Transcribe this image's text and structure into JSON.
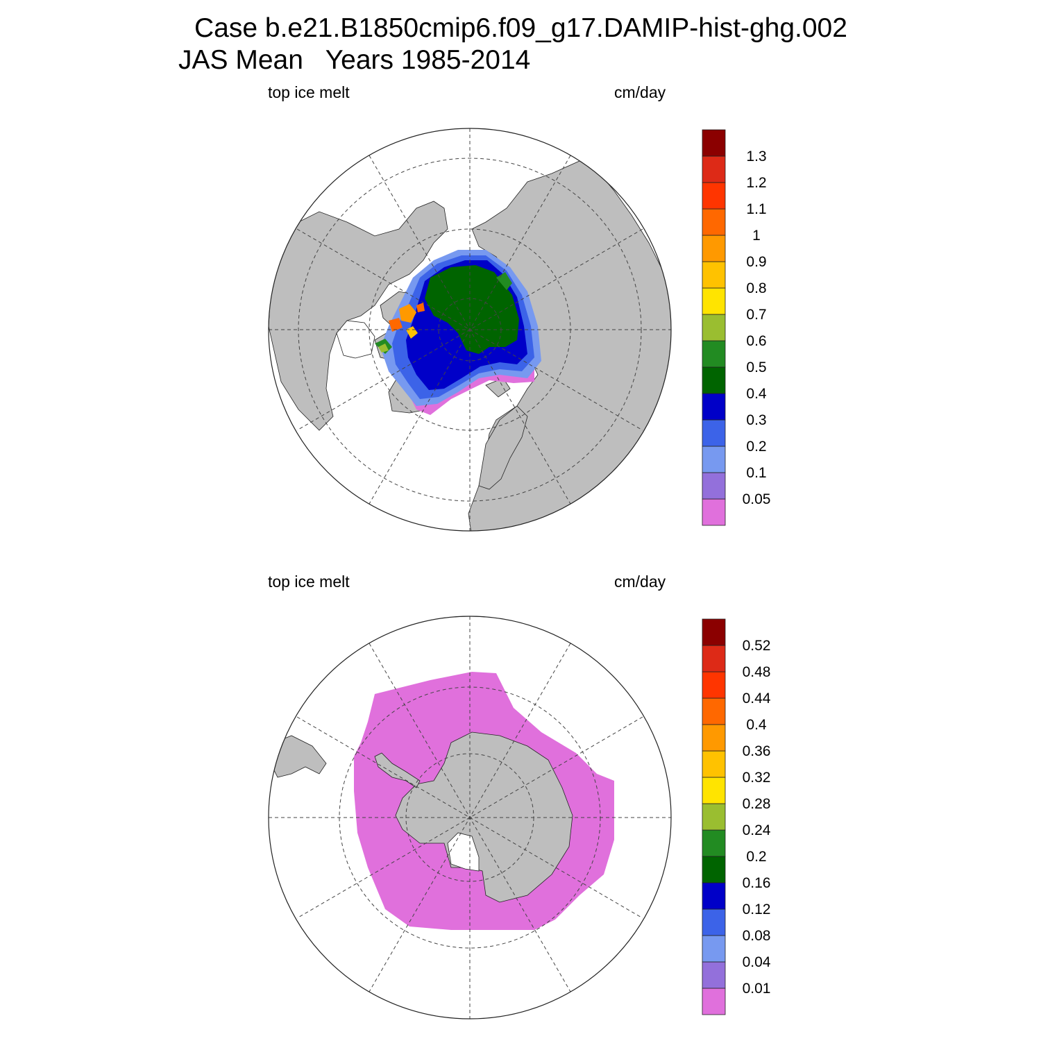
{
  "title": {
    "line1": "Case b.e21.B1850cmip6.f09_g17.DAMIP-hist-ghg.002",
    "line2": "JAS Mean   Years 1985-2014"
  },
  "panels": [
    {
      "hemisphere": "north",
      "left_label": "top ice melt",
      "right_label": "cm/day",
      "colorbar": {
        "levels": [
          "0.05",
          "0.1",
          "0.2",
          "0.3",
          "0.4",
          "0.5",
          "0.6",
          "0.7",
          "0.8",
          "0.9",
          "1",
          "1.1",
          "1.2",
          "1.3"
        ],
        "colors": [
          "#e070dc",
          "#9370db",
          "#7799f0",
          "#3c63e8",
          "#0000c8",
          "#006400",
          "#228b22",
          "#9abe30",
          "#ffe400",
          "#ffc200",
          "#ff9900",
          "#ff6800",
          "#ff3500",
          "#dd2a17",
          "#8b0000"
        ]
      }
    },
    {
      "hemisphere": "south",
      "left_label": "top ice melt",
      "right_label": "cm/day",
      "colorbar": {
        "levels": [
          "0.01",
          "0.04",
          "0.08",
          "0.12",
          "0.16",
          "0.2",
          "0.24",
          "0.28",
          "0.32",
          "0.36",
          "0.4",
          "0.44",
          "0.48",
          "0.52"
        ],
        "colors": [
          "#e070dc",
          "#9370db",
          "#7799f0",
          "#3c63e8",
          "#0000c8",
          "#006400",
          "#228b22",
          "#9abe30",
          "#ffe400",
          "#ffc200",
          "#ff9900",
          "#ff6800",
          "#ff3500",
          "#dd2a17",
          "#8b0000"
        ]
      }
    }
  ],
  "colors": {
    "land": "#bebebe",
    "ocean": "#ffffff",
    "grid": "#444444"
  }
}
